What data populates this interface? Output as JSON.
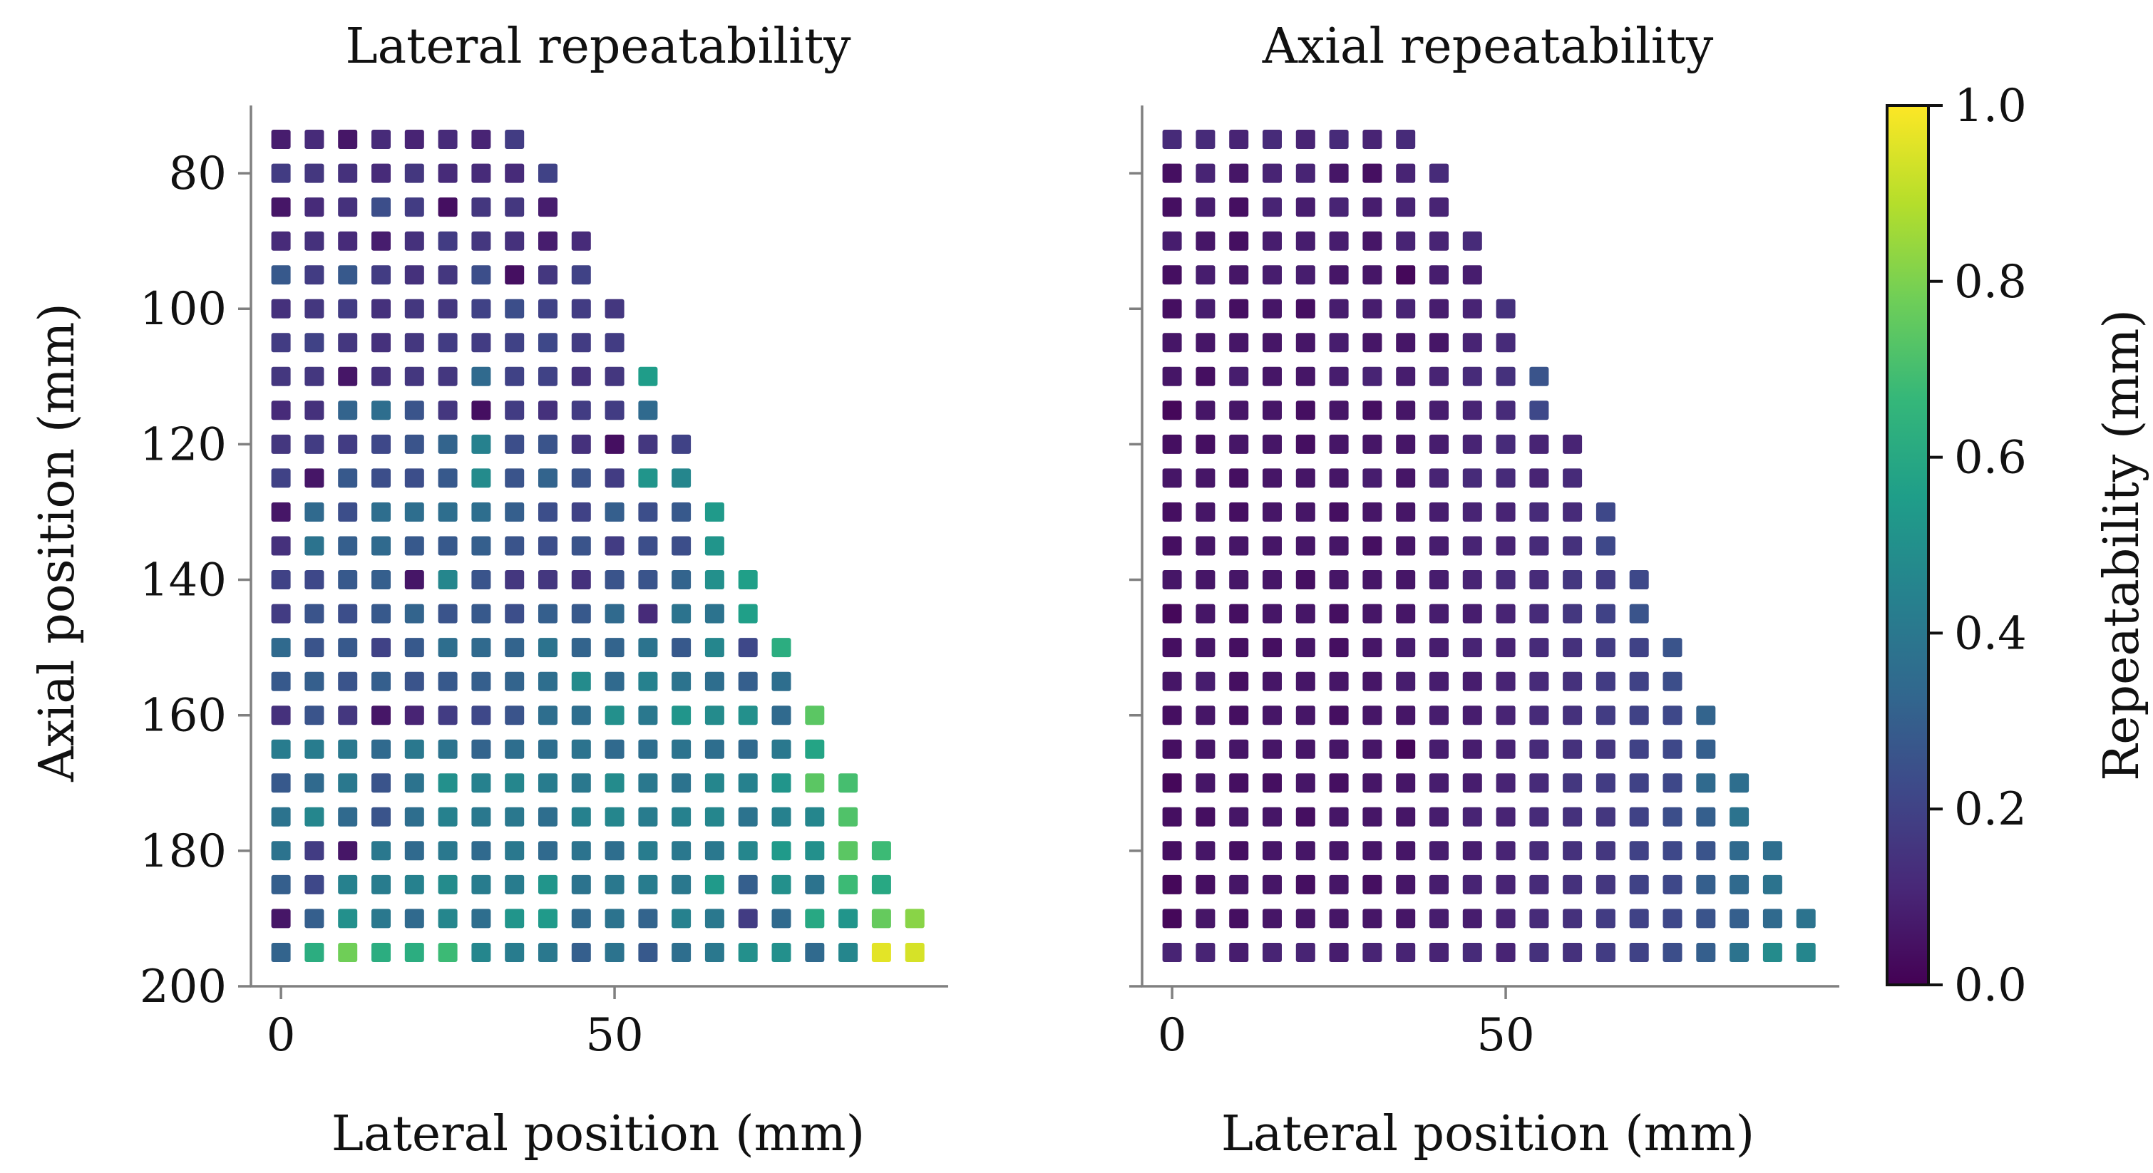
{
  "chart_data": [
    {
      "type": "heatmap",
      "title": "Lateral repeatability",
      "xlabel": "Lateral position (mm)",
      "ylabel": "Axial position (mm)",
      "xticks": [
        0,
        50
      ],
      "yticks": [
        80,
        100,
        120,
        140,
        160,
        180,
        200
      ],
      "xlim": [
        -4.5,
        100
      ],
      "ylim": [
        200,
        70
      ],
      "grid": false,
      "x": [
        0,
        5,
        10,
        15,
        20,
        25,
        30,
        35,
        40,
        45,
        50,
        55,
        60,
        65,
        70,
        75,
        80,
        85,
        90,
        95
      ],
      "y": [
        75,
        80,
        85,
        90,
        95,
        100,
        105,
        110,
        115,
        120,
        125,
        130,
        135,
        140,
        145,
        150,
        155,
        160,
        165,
        170,
        175,
        180,
        185,
        190,
        195
      ],
      "values": [
        [
          0.08,
          0.12,
          0.06,
          0.12,
          0.1,
          0.12,
          0.1,
          0.18
        ],
        [
          0.18,
          0.16,
          0.14,
          0.12,
          0.16,
          0.12,
          0.12,
          0.12,
          0.2
        ],
        [
          0.06,
          0.12,
          0.14,
          0.24,
          0.18,
          0.04,
          0.16,
          0.16,
          0.08
        ],
        [
          0.12,
          0.14,
          0.12,
          0.08,
          0.14,
          0.18,
          0.16,
          0.14,
          0.08,
          0.12
        ],
        [
          0.28,
          0.18,
          0.28,
          0.18,
          0.14,
          0.16,
          0.24,
          0.04,
          0.16,
          0.2
        ],
        [
          0.14,
          0.16,
          0.18,
          0.14,
          0.16,
          0.16,
          0.2,
          0.24,
          0.2,
          0.18,
          0.16
        ],
        [
          0.18,
          0.2,
          0.16,
          0.14,
          0.16,
          0.18,
          0.18,
          0.2,
          0.22,
          0.18,
          0.18
        ],
        [
          0.16,
          0.16,
          0.06,
          0.14,
          0.16,
          0.16,
          0.34,
          0.2,
          0.2,
          0.14,
          0.16,
          0.55
        ],
        [
          0.12,
          0.14,
          0.32,
          0.36,
          0.26,
          0.16,
          0.04,
          0.18,
          0.14,
          0.18,
          0.18,
          0.34
        ],
        [
          0.16,
          0.18,
          0.18,
          0.22,
          0.26,
          0.32,
          0.44,
          0.24,
          0.26,
          0.14,
          0.04,
          0.16,
          0.2
        ],
        [
          0.2,
          0.06,
          0.28,
          0.24,
          0.24,
          0.28,
          0.48,
          0.26,
          0.32,
          0.26,
          0.18,
          0.52,
          0.46
        ],
        [
          0.06,
          0.34,
          0.24,
          0.36,
          0.36,
          0.36,
          0.36,
          0.3,
          0.24,
          0.2,
          0.3,
          0.24,
          0.28,
          0.54
        ],
        [
          0.14,
          0.38,
          0.3,
          0.34,
          0.28,
          0.28,
          0.3,
          0.26,
          0.24,
          0.26,
          0.18,
          0.24,
          0.24,
          0.52
        ],
        [
          0.2,
          0.22,
          0.28,
          0.3,
          0.06,
          0.46,
          0.26,
          0.16,
          0.16,
          0.14,
          0.26,
          0.26,
          0.32,
          0.5,
          0.56
        ],
        [
          0.18,
          0.26,
          0.24,
          0.28,
          0.32,
          0.26,
          0.28,
          0.24,
          0.3,
          0.28,
          0.34,
          0.12,
          0.38,
          0.38,
          0.56
        ],
        [
          0.34,
          0.26,
          0.28,
          0.2,
          0.28,
          0.36,
          0.34,
          0.32,
          0.38,
          0.32,
          0.32,
          0.38,
          0.28,
          0.46,
          0.22,
          0.62
        ],
        [
          0.28,
          0.3,
          0.26,
          0.3,
          0.26,
          0.28,
          0.3,
          0.32,
          0.36,
          0.48,
          0.34,
          0.44,
          0.38,
          0.36,
          0.3,
          0.36
        ],
        [
          0.14,
          0.26,
          0.16,
          0.06,
          0.1,
          0.18,
          0.22,
          0.26,
          0.36,
          0.36,
          0.5,
          0.4,
          0.52,
          0.48,
          0.5,
          0.34,
          0.74
        ],
        [
          0.42,
          0.42,
          0.4,
          0.34,
          0.4,
          0.38,
          0.32,
          0.36,
          0.36,
          0.38,
          0.34,
          0.36,
          0.38,
          0.36,
          0.34,
          0.4,
          0.58
        ],
        [
          0.28,
          0.34,
          0.4,
          0.26,
          0.38,
          0.5,
          0.44,
          0.46,
          0.42,
          0.4,
          0.48,
          0.4,
          0.38,
          0.46,
          0.44,
          0.52,
          0.74,
          0.7
        ],
        [
          0.38,
          0.46,
          0.34,
          0.26,
          0.36,
          0.44,
          0.4,
          0.4,
          0.36,
          0.44,
          0.46,
          0.42,
          0.44,
          0.46,
          0.38,
          0.44,
          0.46,
          0.72
        ],
        [
          0.38,
          0.18,
          0.06,
          0.4,
          0.34,
          0.4,
          0.34,
          0.4,
          0.34,
          0.38,
          0.36,
          0.42,
          0.4,
          0.4,
          0.46,
          0.54,
          0.5,
          0.74,
          0.68
        ],
        [
          0.3,
          0.22,
          0.44,
          0.42,
          0.44,
          0.48,
          0.42,
          0.42,
          0.52,
          0.38,
          0.4,
          0.42,
          0.4,
          0.54,
          0.3,
          0.5,
          0.38,
          0.68,
          0.6
        ],
        [
          0.06,
          0.3,
          0.5,
          0.4,
          0.34,
          0.46,
          0.36,
          0.52,
          0.54,
          0.34,
          0.38,
          0.32,
          0.44,
          0.4,
          0.18,
          0.34,
          0.6,
          0.52,
          0.76,
          0.82
        ],
        [
          0.32,
          0.62,
          0.78,
          0.62,
          0.62,
          0.68,
          0.46,
          0.42,
          0.4,
          0.3,
          0.38,
          0.28,
          0.36,
          0.4,
          0.5,
          0.5,
          0.34,
          0.46,
          0.96,
          0.94
        ]
      ]
    },
    {
      "type": "heatmap",
      "title": "Axial repeatability",
      "xlabel": "Lateral position (mm)",
      "ylabel": "",
      "xticks": [
        0,
        50
      ],
      "yticks": [
        80,
        100,
        120,
        140,
        160,
        180,
        200
      ],
      "xlim": [
        -4.5,
        100
      ],
      "ylim": [
        200,
        70
      ],
      "grid": false,
      "x": [
        0,
        5,
        10,
        15,
        20,
        25,
        30,
        35,
        40,
        45,
        50,
        55,
        60,
        65,
        70,
        75,
        80,
        85,
        90,
        95
      ],
      "y": [
        75,
        80,
        85,
        90,
        95,
        100,
        105,
        110,
        115,
        120,
        125,
        130,
        135,
        140,
        145,
        150,
        155,
        160,
        165,
        170,
        175,
        180,
        185,
        190,
        195
      ],
      "values": [
        [
          0.12,
          0.12,
          0.1,
          0.12,
          0.1,
          0.12,
          0.1,
          0.12
        ],
        [
          0.04,
          0.1,
          0.06,
          0.1,
          0.1,
          0.06,
          0.04,
          0.1,
          0.12
        ],
        [
          0.04,
          0.08,
          0.04,
          0.1,
          0.08,
          0.1,
          0.08,
          0.1,
          0.1
        ],
        [
          0.08,
          0.06,
          0.04,
          0.08,
          0.08,
          0.08,
          0.06,
          0.1,
          0.1,
          0.12
        ],
        [
          0.04,
          0.08,
          0.06,
          0.08,
          0.08,
          0.06,
          0.06,
          0.02,
          0.08,
          0.08
        ],
        [
          0.04,
          0.08,
          0.04,
          0.06,
          0.04,
          0.08,
          0.08,
          0.1,
          0.08,
          0.1,
          0.14
        ],
        [
          0.06,
          0.06,
          0.06,
          0.06,
          0.06,
          0.08,
          0.06,
          0.06,
          0.06,
          0.1,
          0.12
        ],
        [
          0.06,
          0.04,
          0.08,
          0.06,
          0.06,
          0.08,
          0.1,
          0.08,
          0.1,
          0.12,
          0.14,
          0.26
        ],
        [
          0.02,
          0.06,
          0.06,
          0.06,
          0.04,
          0.06,
          0.04,
          0.06,
          0.08,
          0.1,
          0.12,
          0.22
        ],
        [
          0.04,
          0.04,
          0.06,
          0.06,
          0.04,
          0.06,
          0.06,
          0.06,
          0.08,
          0.1,
          0.12,
          0.1,
          0.1
        ],
        [
          0.06,
          0.06,
          0.04,
          0.06,
          0.06,
          0.06,
          0.08,
          0.06,
          0.1,
          0.12,
          0.12,
          0.1,
          0.12
        ],
        [
          0.04,
          0.06,
          0.04,
          0.06,
          0.06,
          0.04,
          0.06,
          0.06,
          0.08,
          0.1,
          0.1,
          0.12,
          0.12,
          0.22
        ],
        [
          0.04,
          0.06,
          0.06,
          0.06,
          0.06,
          0.06,
          0.04,
          0.06,
          0.08,
          0.1,
          0.1,
          0.12,
          0.14,
          0.22
        ],
        [
          0.06,
          0.06,
          0.06,
          0.06,
          0.04,
          0.06,
          0.06,
          0.06,
          0.08,
          0.1,
          0.12,
          0.12,
          0.16,
          0.18,
          0.22
        ],
        [
          0.02,
          0.06,
          0.04,
          0.06,
          0.06,
          0.04,
          0.06,
          0.06,
          0.08,
          0.08,
          0.1,
          0.12,
          0.16,
          0.2,
          0.26
        ],
        [
          0.04,
          0.06,
          0.04,
          0.04,
          0.06,
          0.04,
          0.06,
          0.08,
          0.08,
          0.1,
          0.1,
          0.12,
          0.14,
          0.18,
          0.2,
          0.26
        ],
        [
          0.06,
          0.08,
          0.04,
          0.06,
          0.06,
          0.06,
          0.06,
          0.08,
          0.08,
          0.08,
          0.1,
          0.12,
          0.14,
          0.18,
          0.2,
          0.24
        ],
        [
          0.04,
          0.06,
          0.04,
          0.06,
          0.06,
          0.04,
          0.06,
          0.06,
          0.08,
          0.08,
          0.1,
          0.12,
          0.14,
          0.18,
          0.2,
          0.22,
          0.32
        ],
        [
          0.04,
          0.06,
          0.06,
          0.06,
          0.06,
          0.06,
          0.06,
          0.02,
          0.08,
          0.08,
          0.1,
          0.12,
          0.14,
          0.16,
          0.2,
          0.22,
          0.3
        ],
        [
          0.02,
          0.06,
          0.04,
          0.04,
          0.06,
          0.04,
          0.06,
          0.06,
          0.08,
          0.08,
          0.1,
          0.12,
          0.16,
          0.18,
          0.2,
          0.22,
          0.34,
          0.36
        ],
        [
          0.04,
          0.04,
          0.06,
          0.06,
          0.04,
          0.06,
          0.06,
          0.06,
          0.08,
          0.1,
          0.1,
          0.12,
          0.14,
          0.16,
          0.2,
          0.24,
          0.3,
          0.38
        ],
        [
          0.04,
          0.06,
          0.04,
          0.06,
          0.06,
          0.06,
          0.06,
          0.06,
          0.08,
          0.08,
          0.1,
          0.12,
          0.14,
          0.16,
          0.2,
          0.22,
          0.26,
          0.34,
          0.36
        ],
        [
          0.02,
          0.04,
          0.06,
          0.06,
          0.04,
          0.06,
          0.04,
          0.06,
          0.08,
          0.1,
          0.1,
          0.12,
          0.14,
          0.16,
          0.2,
          0.22,
          0.3,
          0.34,
          0.38
        ],
        [
          0.02,
          0.06,
          0.04,
          0.06,
          0.06,
          0.06,
          0.06,
          0.06,
          0.08,
          0.08,
          0.1,
          0.12,
          0.14,
          0.18,
          0.2,
          0.22,
          0.26,
          0.3,
          0.34,
          0.38
        ],
        [
          0.1,
          0.1,
          0.08,
          0.1,
          0.1,
          0.08,
          0.1,
          0.1,
          0.1,
          0.12,
          0.1,
          0.14,
          0.14,
          0.18,
          0.2,
          0.24,
          0.3,
          0.38,
          0.48,
          0.46
        ]
      ]
    }
  ],
  "colorbar": {
    "label": "Repeatability (mm)",
    "ticks": [
      "0.0",
      "0.2",
      "0.4",
      "0.6",
      "0.8",
      "1.0"
    ],
    "min": 0,
    "max": 1,
    "colormap": "viridis",
    "stops": [
      "#440154",
      "#482878",
      "#3e4989",
      "#31688e",
      "#26828e",
      "#1f9e89",
      "#35b779",
      "#6ece58",
      "#b5de2b",
      "#fde725"
    ]
  },
  "colors": {
    "axis": "#808080",
    "text": "#111111",
    "background": "#ffffff"
  }
}
